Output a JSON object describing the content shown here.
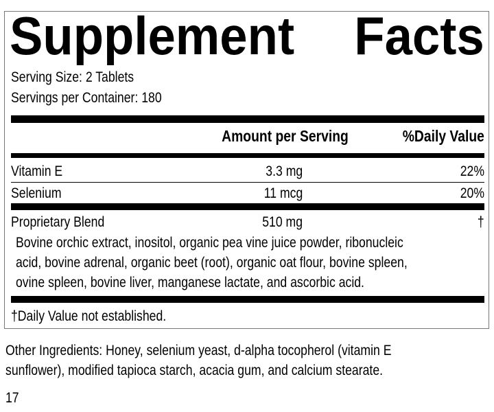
{
  "title_word1": "Supplement",
  "title_word2": "Facts",
  "serving_size": "Serving Size: 2 Tablets",
  "servings_per_container": "Servings per Container: 180",
  "header": {
    "amount": "Amount per Serving",
    "daily_value": "%Daily Value"
  },
  "rows": [
    {
      "name": "Vitamin E",
      "amount": "3.3 mg",
      "dv": "22%"
    },
    {
      "name": "Selenium",
      "amount": "11 mcg",
      "dv": "20%"
    },
    {
      "name": "Proprietary Blend",
      "amount": "510 mg",
      "dv": "†"
    }
  ],
  "blend_lines": [
    "Bovine orchic extract, inositol, organic pea vine juice powder, ribonucleic",
    "acid, bovine adrenal, organic beet (root), organic oat flour, bovine spleen,",
    "ovine spleen, bovine liver, manganese lactate, and ascorbic acid."
  ],
  "footnote": "†Daily Value not established.",
  "other_lines": [
    "Other Ingredients: Honey, selenium yeast, d-alpha tocopherol (vitamin E",
    "sunflower), modified tapioca starch, acacia gum, and calcium stearate."
  ],
  "page_number": "17"
}
